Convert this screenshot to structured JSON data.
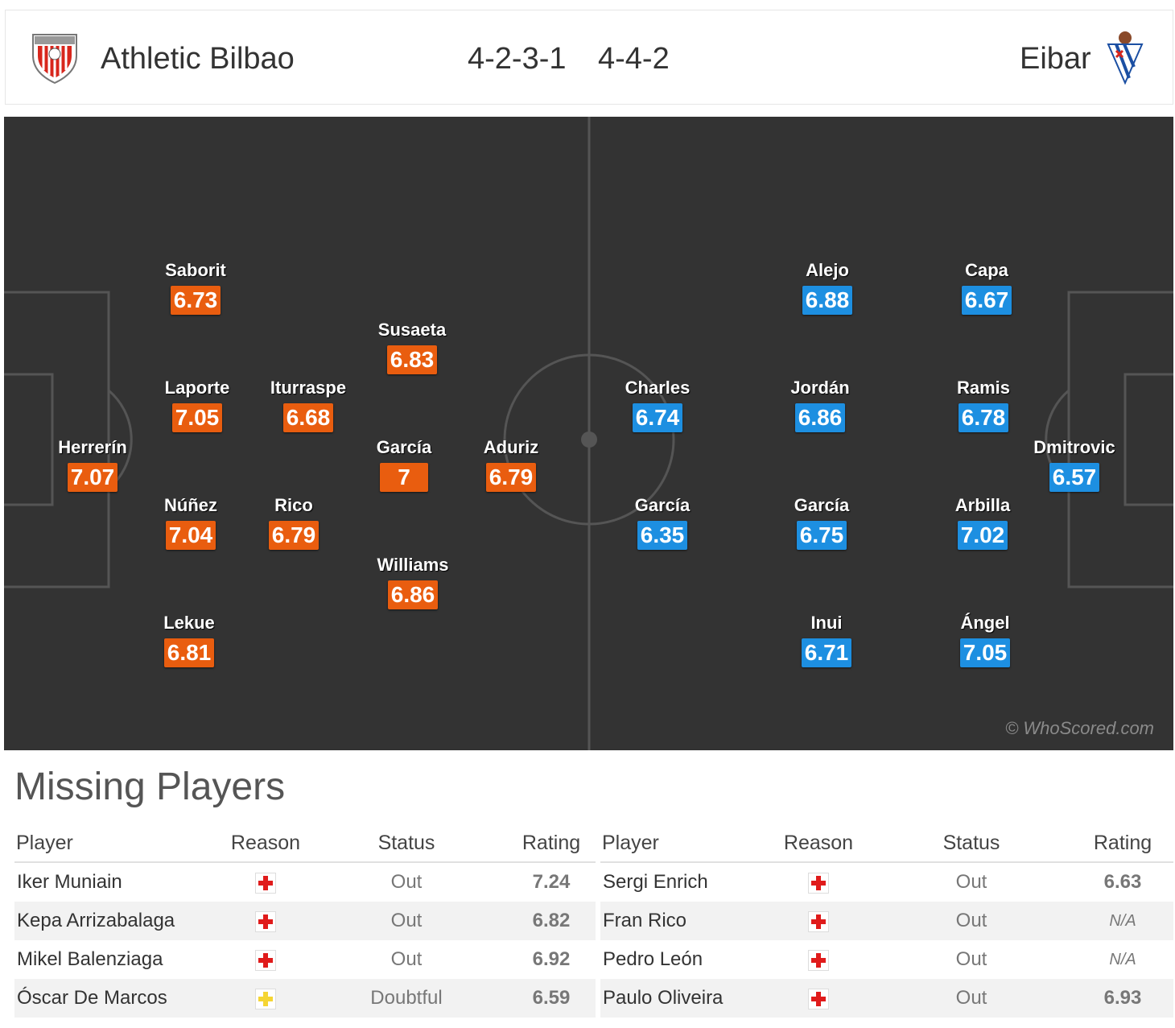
{
  "header": {
    "home_team": "Athletic Bilbao",
    "home_formation": "4-2-3-1",
    "away_formation": "4-4-2",
    "away_team": "Eibar",
    "home_crest_icon": "athletic-bilbao-crest-icon",
    "away_crest_icon": "eibar-crest-icon"
  },
  "colors": {
    "pitch": "#333333",
    "home_rating": "#e95d0f",
    "away_rating": "#1d8fe1",
    "injury": "#e01b1b",
    "doubtful": "#f5d533"
  },
  "pitch": {
    "credit": "© WhoScored.com",
    "home_players": [
      {
        "name": "Saborit",
        "rating": "6.73"
      },
      {
        "name": "Laporte",
        "rating": "7.05"
      },
      {
        "name": "Iturraspe",
        "rating": "6.68"
      },
      {
        "name": "Susaeta",
        "rating": "6.83"
      },
      {
        "name": "Herrerín",
        "rating": "7.07"
      },
      {
        "name": "García",
        "rating": "7"
      },
      {
        "name": "Aduriz",
        "rating": "6.79"
      },
      {
        "name": "Núñez",
        "rating": "7.04"
      },
      {
        "name": "Rico",
        "rating": "6.79"
      },
      {
        "name": "Williams",
        "rating": "6.86"
      },
      {
        "name": "Lekue",
        "rating": "6.81"
      }
    ],
    "away_players": [
      {
        "name": "Alejo",
        "rating": "6.88"
      },
      {
        "name": "Capa",
        "rating": "6.67"
      },
      {
        "name": "Charles",
        "rating": "6.74"
      },
      {
        "name": "Jordán",
        "rating": "6.86"
      },
      {
        "name": "Ramis",
        "rating": "6.78"
      },
      {
        "name": "Dmitrovic",
        "rating": "6.57"
      },
      {
        "name": "García",
        "rating": "6.35"
      },
      {
        "name": "García",
        "rating": "6.75"
      },
      {
        "name": "Arbilla",
        "rating": "7.02"
      },
      {
        "name": "Inui",
        "rating": "6.71"
      },
      {
        "name": "Ángel",
        "rating": "7.05"
      }
    ]
  },
  "missing": {
    "title": "Missing Players",
    "columns": [
      "Player",
      "Reason",
      "Status",
      "Rating"
    ],
    "home": [
      {
        "player": "Iker Muniain",
        "reason": "injury-icon",
        "status": "Out",
        "rating": "7.24"
      },
      {
        "player": "Kepa Arrizabalaga",
        "reason": "injury-icon",
        "status": "Out",
        "rating": "6.82"
      },
      {
        "player": "Mikel Balenziaga",
        "reason": "injury-icon",
        "status": "Out",
        "rating": "6.92"
      },
      {
        "player": "Óscar De Marcos",
        "reason": "doubtful-icon",
        "status": "Doubtful",
        "rating": "6.59"
      }
    ],
    "away": [
      {
        "player": "Sergi Enrich",
        "reason": "injury-icon",
        "status": "Out",
        "rating": "6.63"
      },
      {
        "player": "Fran Rico",
        "reason": "injury-icon",
        "status": "Out",
        "rating": "N/A"
      },
      {
        "player": "Pedro León",
        "reason": "injury-icon",
        "status": "Out",
        "rating": "N/A"
      },
      {
        "player": "Paulo Oliveira",
        "reason": "injury-icon",
        "status": "Out",
        "rating": "6.93"
      }
    ]
  }
}
